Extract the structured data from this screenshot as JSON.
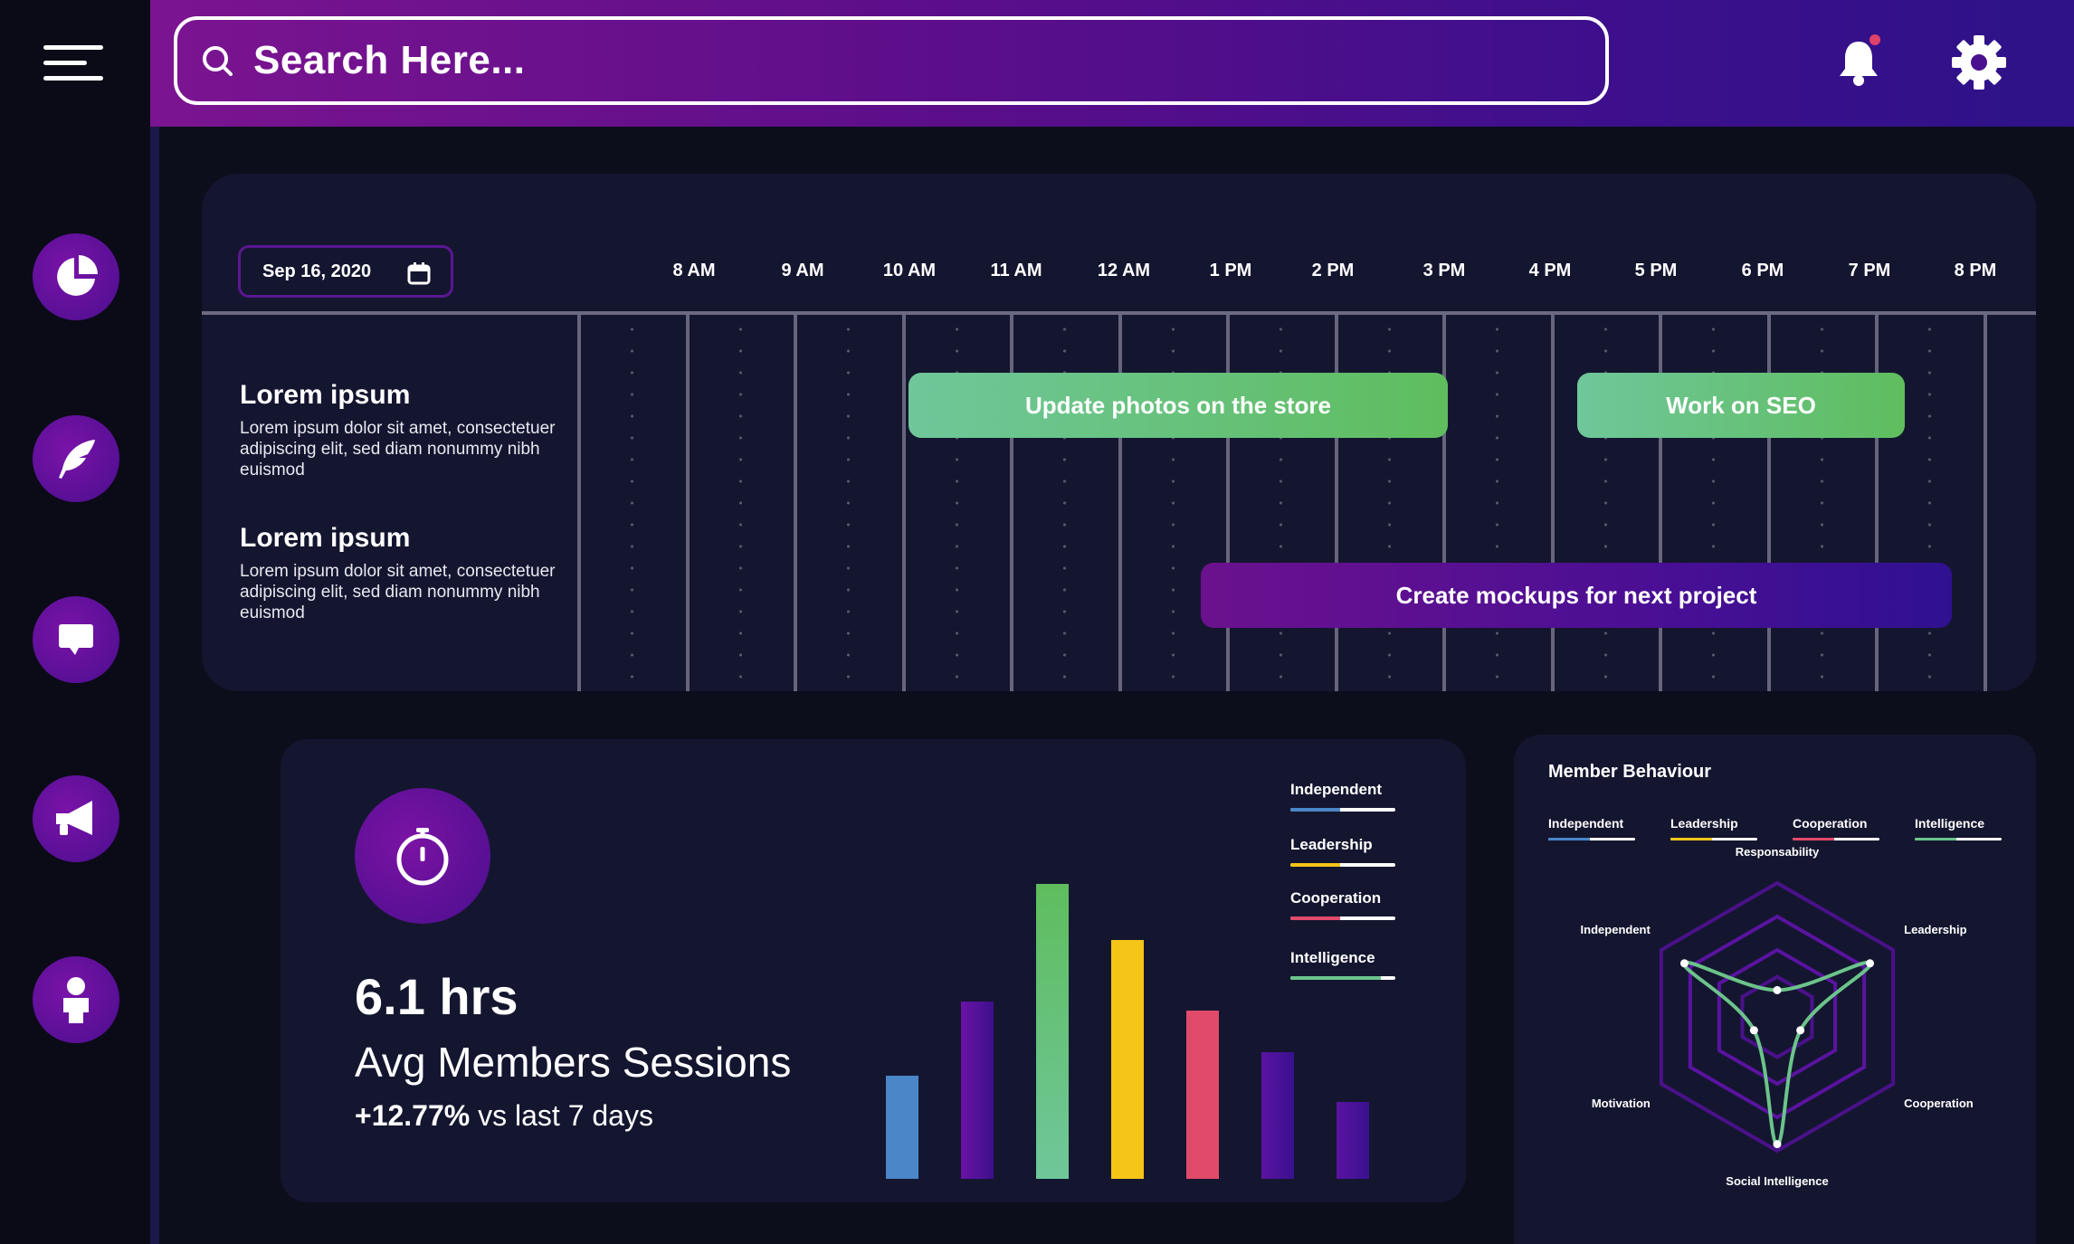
{
  "search": {
    "placeholder": "Search Here..."
  },
  "timeline": {
    "date": "Sep 16, 2020",
    "hours": [
      "8 AM",
      "9 AM",
      "10 AM",
      "11 AM",
      "12 AM",
      "1 PM",
      "2 PM",
      "3 PM",
      "4 PM",
      "5 PM",
      "6 PM",
      "7 PM",
      "8 PM"
    ],
    "rows": [
      {
        "title": "Lorem ipsum",
        "desc": "Lorem ipsum dolor sit amet, consectetuer adipiscing elit, sed diam nonummy nibh euismod"
      },
      {
        "title": "Lorem ipsum",
        "desc": "Lorem ipsum dolor sit amet, consectetuer adipiscing elit, sed diam nonummy nibh euismod"
      }
    ],
    "tasks": [
      {
        "label": "Update photos on the store"
      },
      {
        "label": "Work on SEO"
      },
      {
        "label": "Create mockups for next project"
      }
    ]
  },
  "sessions": {
    "value": "6.1 hrs",
    "label": "Avg Members Sessions",
    "delta": "+12.77%",
    "delta_suffix": " vs last 7 days",
    "legend": [
      "Independent",
      "Leadership",
      "Cooperation",
      "Intelligence"
    ]
  },
  "chart_data": [
    {
      "type": "bar",
      "categories": [
        "",
        "",
        "",
        "",
        "",
        "",
        ""
      ],
      "values": [
        35,
        60,
        100,
        81,
        57,
        43,
        26
      ],
      "colors": [
        "#4a86c8",
        "#5a13a0",
        "#6bc48a",
        "#f5c518",
        "#e14a6a",
        "#4a0e8e",
        "#4a0e8e"
      ],
      "ylim": [
        0,
        100
      ],
      "legend": [
        "Independent",
        "Leadership",
        "Cooperation",
        "Intelligence"
      ]
    },
    {
      "type": "radar",
      "title": "Member Behaviour",
      "axes": [
        "Responsability",
        "Leadership",
        "Cooperation",
        "Social Intelligence",
        "Motivation",
        "Independent"
      ],
      "values": [
        0.2,
        0.8,
        0.2,
        0.95,
        0.2,
        0.8
      ],
      "max": 1,
      "legend": [
        "Independent",
        "Leadership",
        "Cooperation",
        "Intelligence"
      ]
    }
  ],
  "colors": {
    "independent": "#4a86c8",
    "leadership": "#f5c518",
    "cooperation": "#e14a6a",
    "intelligence": "#6bc48a",
    "accent": "#5a13a0"
  },
  "icons": [
    "menu-icon",
    "search-icon",
    "bell-icon",
    "gear-icon",
    "pie-chart-icon",
    "feather-icon",
    "chat-icon",
    "megaphone-icon",
    "user-icon",
    "calendar-icon",
    "timer-icon"
  ]
}
